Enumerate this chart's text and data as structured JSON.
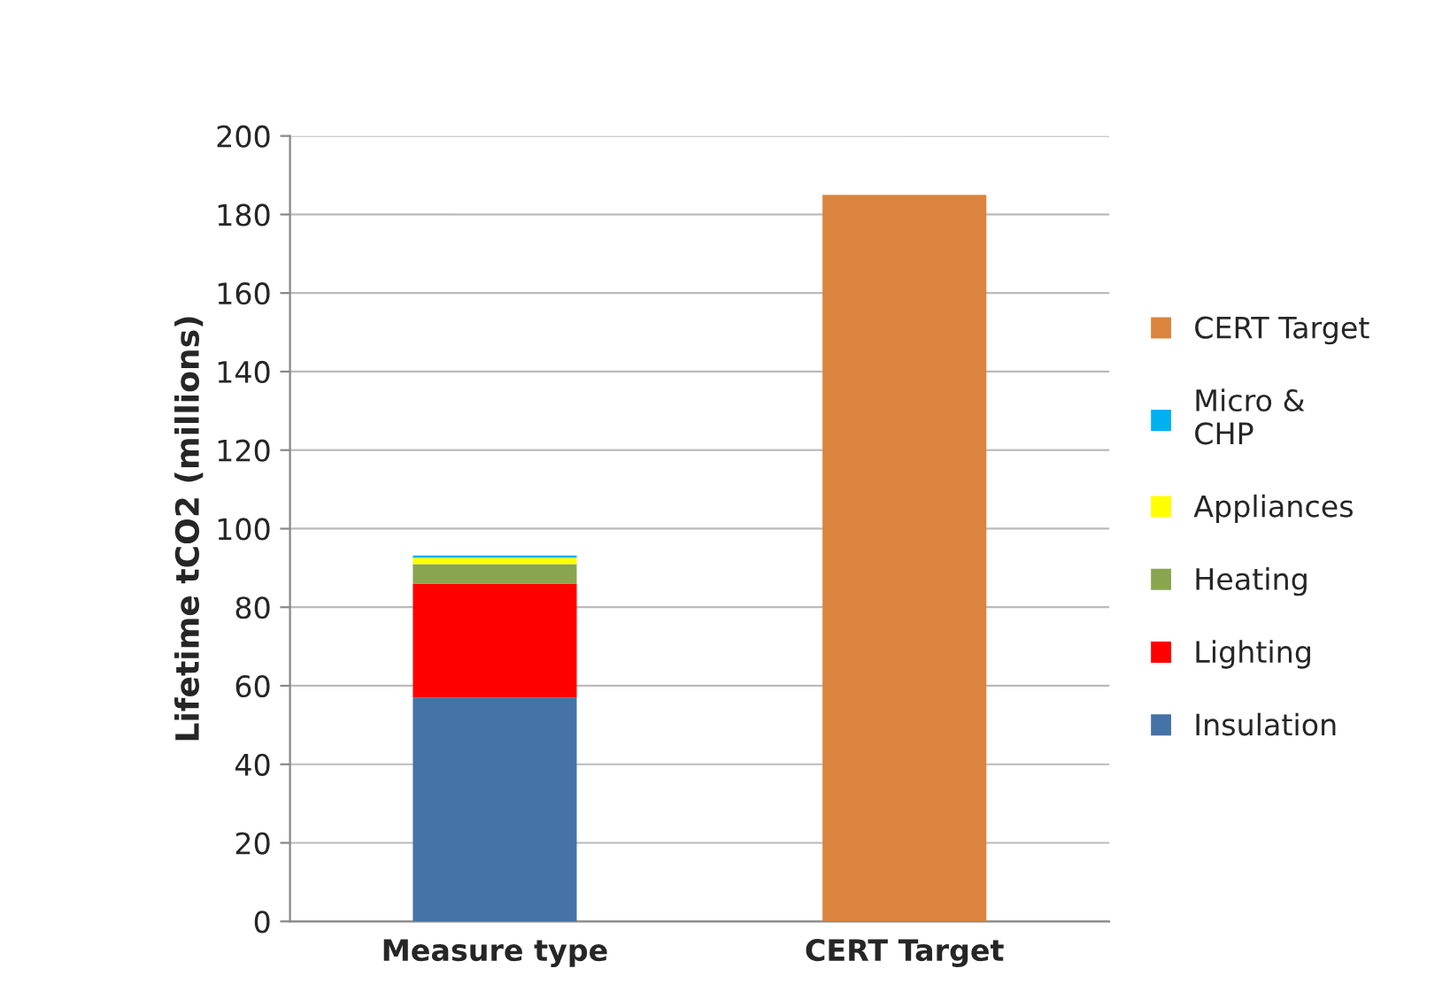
{
  "chart_data": {
    "type": "bar",
    "stacked": true,
    "ylabel": "Lifetime tCO2 (millions)",
    "categories": [
      "Measure type",
      "CERT Target"
    ],
    "series": [
      {
        "name": "Insulation",
        "color": "#4572a7",
        "values": [
          57,
          null
        ]
      },
      {
        "name": "Lighting",
        "color": "#ff0000",
        "values": [
          29,
          null
        ]
      },
      {
        "name": "Heating",
        "color": "#89a54e",
        "values": [
          5,
          null
        ]
      },
      {
        "name": "Appliances",
        "color": "#ffff00",
        "values": [
          1.6,
          null
        ]
      },
      {
        "name": "Micro & CHP",
        "color": "#00b0f0",
        "values": [
          0.6,
          null
        ]
      },
      {
        "name": "CERT Target",
        "color": "#db843d",
        "values": [
          null,
          185
        ]
      }
    ],
    "ylim": [
      0,
      200
    ],
    "yticks": [
      0,
      20,
      40,
      60,
      80,
      100,
      120,
      140,
      160,
      180,
      200
    ],
    "grid": "y",
    "legend": "right"
  }
}
